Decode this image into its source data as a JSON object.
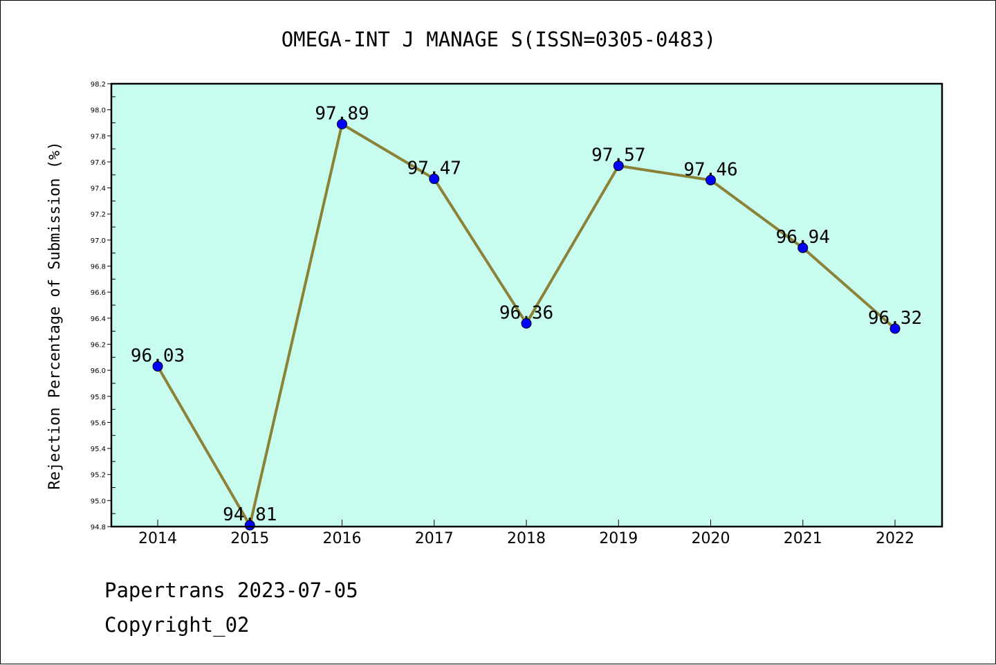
{
  "footer": {
    "line1": "Papertrans 2023-07-05",
    "line2": "Copyright_02"
  },
  "chart_data": {
    "type": "line",
    "title": "OMEGA-INT J MANAGE S(ISSN=0305-0483)",
    "xlabel": "",
    "ylabel": "Rejection Percentage of Submission (%)",
    "categories": [
      "2014",
      "2015",
      "2016",
      "2017",
      "2018",
      "2019",
      "2020",
      "2021",
      "2022"
    ],
    "series": [
      {
        "values": [
          96.03,
          94.81,
          97.89,
          97.47,
          96.36,
          97.57,
          97.46,
          96.94,
          96.32
        ],
        "data_labels": [
          "96.03",
          "94.81",
          "97.89",
          "97.47",
          "96.36",
          "97.57",
          "97.46",
          "96.94",
          "96.32"
        ],
        "line_color": "#8b8237",
        "marker_color": "#0000ff"
      }
    ],
    "ylim": [
      94.8,
      98.2
    ],
    "yticks": [
      "94.8",
      "95.0",
      "95.2",
      "95.4",
      "95.6",
      "95.8",
      "96.0",
      "96.2",
      "96.4",
      "96.6",
      "96.8",
      "97.0",
      "97.2",
      "97.4",
      "97.6",
      "97.8",
      "98.0",
      "98.2"
    ],
    "plot_background": "#c8fcee",
    "grid": false,
    "legend": "none"
  }
}
